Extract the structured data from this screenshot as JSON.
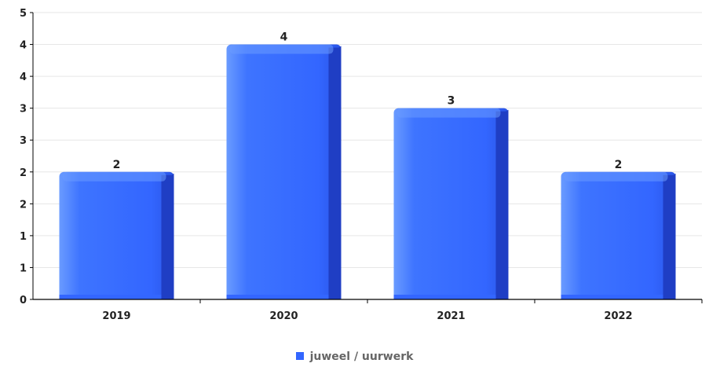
{
  "chart_data": {
    "type": "bar",
    "categories": [
      "2019",
      "2020",
      "2021",
      "2022"
    ],
    "series": [
      {
        "name": "juweel / uurwerk",
        "values": [
          2,
          4,
          3,
          2
        ]
      }
    ],
    "data_labels": [
      "2",
      "4",
      "3",
      "2"
    ],
    "y_tick_labels": [
      "0",
      "1",
      "1",
      "2",
      "2",
      "3",
      "3",
      "4",
      "4",
      "5"
    ],
    "ylim": [
      0,
      4.5
    ],
    "grid": true,
    "legend_position": "bottom-center",
    "title": "",
    "xlabel": "",
    "ylabel": ""
  },
  "colors": {
    "bar": "#3366ff",
    "bar_light": "#6a9bff",
    "bar_dark": "#1f3ec4",
    "grid": "#e6e6e6",
    "axis": "#000000",
    "legend_text": "#666666"
  }
}
